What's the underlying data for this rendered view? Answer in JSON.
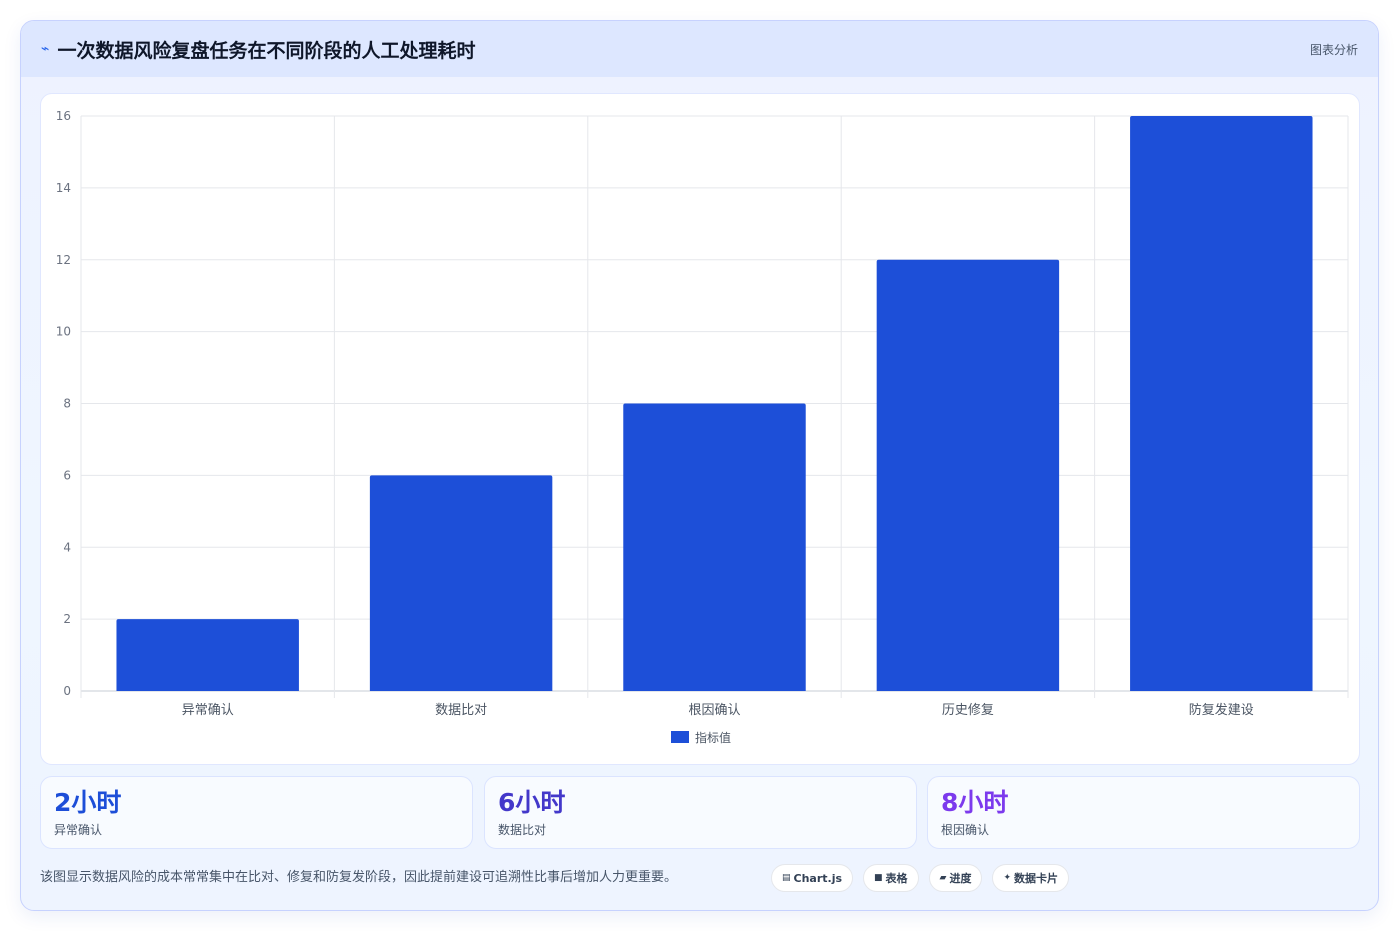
{
  "header": {
    "title": "一次数据风险复盘任务在不同阶段的人工处理耗时",
    "icon": "sparkline-icon",
    "tag": "图表分析"
  },
  "chart_data": {
    "type": "bar",
    "categories": [
      "异常确认",
      "数据比对",
      "根因确认",
      "历史修复",
      "防复发建设"
    ],
    "series": [
      {
        "name": "指标值",
        "values": [
          2,
          6,
          8,
          12,
          16
        ],
        "color": "#1d4fd8"
      }
    ],
    "ylim": [
      0,
      16
    ],
    "yticks": [
      0,
      2,
      4,
      6,
      8,
      10,
      12,
      14,
      16
    ],
    "grid": true,
    "legend_position": "bottom-center"
  },
  "stats": [
    {
      "value": "2小时",
      "label": "异常确认",
      "color": "#1d4ed8"
    },
    {
      "value": "6小时",
      "label": "数据比对",
      "color": "#4338ca"
    },
    {
      "value": "8小时",
      "label": "根因确认",
      "color": "#7c3aed"
    }
  ],
  "footer": {
    "note": "该图显示数据风险的成本常常集中在比对、修复和防复发阶段，因此提前建设可追溯性比事后增加人力更重要。",
    "pills": [
      {
        "icon": "chart-icon",
        "glyph": "▤",
        "label": "Chart.js"
      },
      {
        "icon": "table-icon",
        "glyph": "■",
        "label": "表格"
      },
      {
        "icon": "progress-icon",
        "glyph": "▰",
        "label": "进度"
      },
      {
        "icon": "sparkle-icon",
        "glyph": "✦",
        "label": "数据卡片"
      }
    ]
  }
}
